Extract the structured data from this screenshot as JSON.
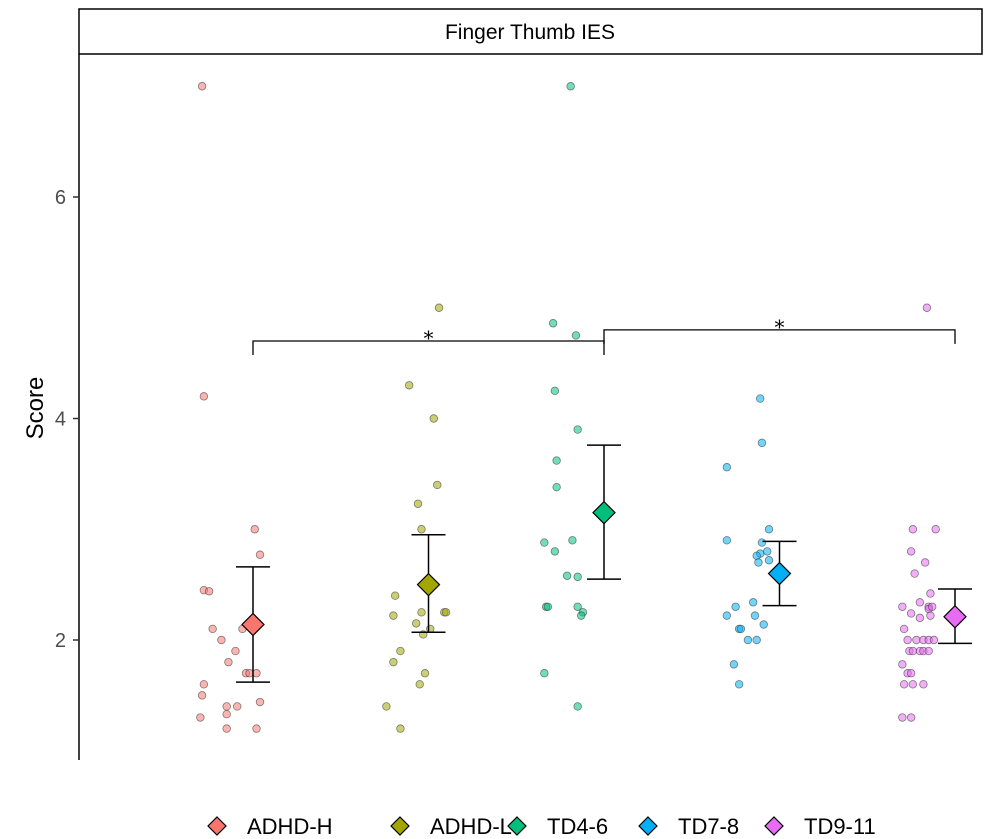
{
  "chart_data": {
    "type": "scatter",
    "title": "Finger Thumb IES",
    "xlabel": "",
    "ylabel": "Score",
    "ylim": [
      0.9,
      7.3
    ],
    "yticks": [
      2,
      4,
      6
    ],
    "grid": false,
    "legend_position": "bottom",
    "groups": [
      {
        "name": "ADHD-H",
        "color": "#F8766D",
        "mean": 2.14,
        "ci_low": 1.62,
        "ci_high": 2.66,
        "points": [
          {
            "x": -0.29,
            "y": 7.0
          },
          {
            "x": -0.28,
            "y": 4.2
          },
          {
            "x": 0.01,
            "y": 3.0
          },
          {
            "x": 0.04,
            "y": 2.77
          },
          {
            "x": -0.28,
            "y": 2.45
          },
          {
            "x": -0.25,
            "y": 2.44
          },
          {
            "x": -0.23,
            "y": 2.1
          },
          {
            "x": -0.06,
            "y": 2.1
          },
          {
            "x": -0.18,
            "y": 2.0
          },
          {
            "x": -0.1,
            "y": 1.9
          },
          {
            "x": -0.14,
            "y": 1.8
          },
          {
            "x": -0.04,
            "y": 1.7
          },
          {
            "x": -0.02,
            "y": 1.7
          },
          {
            "x": 0.02,
            "y": 1.7
          },
          {
            "x": -0.28,
            "y": 1.6
          },
          {
            "x": -0.29,
            "y": 1.5
          },
          {
            "x": -0.15,
            "y": 1.4
          },
          {
            "x": -0.09,
            "y": 1.4
          },
          {
            "x": 0.04,
            "y": 1.44
          },
          {
            "x": -0.15,
            "y": 1.33
          },
          {
            "x": -0.3,
            "y": 1.3
          },
          {
            "x": -0.15,
            "y": 1.2
          },
          {
            "x": 0.02,
            "y": 1.2
          }
        ]
      },
      {
        "name": "ADHD-L",
        "color": "#A3A500",
        "mean": 2.5,
        "ci_low": 2.07,
        "ci_high": 2.95,
        "points": [
          {
            "x": 0.06,
            "y": 5.0
          },
          {
            "x": -0.11,
            "y": 4.3
          },
          {
            "x": 0.03,
            "y": 4.0
          },
          {
            "x": 0.05,
            "y": 3.4
          },
          {
            "x": -0.06,
            "y": 3.23
          },
          {
            "x": -0.04,
            "y": 3.0
          },
          {
            "x": -0.19,
            "y": 2.4
          },
          {
            "x": -0.2,
            "y": 2.22
          },
          {
            "x": -0.04,
            "y": 2.25
          },
          {
            "x": 0.09,
            "y": 2.25
          },
          {
            "x": 0.1,
            "y": 2.25
          },
          {
            "x": -0.07,
            "y": 2.15
          },
          {
            "x": 0.01,
            "y": 2.1
          },
          {
            "x": -0.16,
            "y": 1.9
          },
          {
            "x": -0.03,
            "y": 2.05
          },
          {
            "x": -0.2,
            "y": 1.8
          },
          {
            "x": -0.02,
            "y": 1.7
          },
          {
            "x": -0.05,
            "y": 1.6
          },
          {
            "x": -0.24,
            "y": 1.4
          },
          {
            "x": -0.16,
            "y": 1.2
          }
        ]
      },
      {
        "name": "TD4-6",
        "color": "#00BF7D",
        "mean": 3.15,
        "ci_low": 2.55,
        "ci_high": 3.76,
        "points": [
          {
            "x": -0.19,
            "y": 7.0
          },
          {
            "x": -0.29,
            "y": 4.86
          },
          {
            "x": -0.16,
            "y": 4.75
          },
          {
            "x": -0.28,
            "y": 4.25
          },
          {
            "x": -0.15,
            "y": 3.9
          },
          {
            "x": -0.27,
            "y": 3.62
          },
          {
            "x": -0.27,
            "y": 3.38
          },
          {
            "x": -0.18,
            "y": 2.9
          },
          {
            "x": -0.34,
            "y": 2.88
          },
          {
            "x": -0.28,
            "y": 2.8
          },
          {
            "x": -0.21,
            "y": 2.58
          },
          {
            "x": -0.15,
            "y": 2.57
          },
          {
            "x": -0.33,
            "y": 2.3
          },
          {
            "x": -0.32,
            "y": 2.3
          },
          {
            "x": -0.15,
            "y": 2.3
          },
          {
            "x": -0.12,
            "y": 2.25
          },
          {
            "x": -0.13,
            "y": 2.22
          },
          {
            "x": -0.34,
            "y": 1.7
          },
          {
            "x": -0.15,
            "y": 1.4
          }
        ]
      },
      {
        "name": "TD7-8",
        "color": "#00B0F6",
        "mean": 2.6,
        "ci_low": 2.31,
        "ci_high": 2.89,
        "points": [
          {
            "x": -0.11,
            "y": 4.18
          },
          {
            "x": -0.1,
            "y": 3.78
          },
          {
            "x": -0.3,
            "y": 3.56
          },
          {
            "x": -0.06,
            "y": 3.0
          },
          {
            "x": -0.3,
            "y": 2.9
          },
          {
            "x": -0.1,
            "y": 2.88
          },
          {
            "x": -0.11,
            "y": 2.78
          },
          {
            "x": -0.07,
            "y": 2.8
          },
          {
            "x": -0.13,
            "y": 2.76
          },
          {
            "x": -0.12,
            "y": 2.7
          },
          {
            "x": -0.06,
            "y": 2.72
          },
          {
            "x": -0.15,
            "y": 2.34
          },
          {
            "x": -0.25,
            "y": 2.3
          },
          {
            "x": -0.3,
            "y": 2.22
          },
          {
            "x": -0.14,
            "y": 2.22
          },
          {
            "x": -0.23,
            "y": 2.1
          },
          {
            "x": -0.22,
            "y": 2.1
          },
          {
            "x": -0.09,
            "y": 2.14
          },
          {
            "x": -0.13,
            "y": 2.0
          },
          {
            "x": -0.18,
            "y": 2.0
          },
          {
            "x": -0.26,
            "y": 1.78
          },
          {
            "x": -0.23,
            "y": 1.6
          }
        ]
      },
      {
        "name": "TD9-11",
        "color": "#E76BF3",
        "mean": 2.21,
        "ci_low": 1.97,
        "ci_high": 2.46,
        "points": [
          {
            "x": -0.16,
            "y": 5.0
          },
          {
            "x": -0.24,
            "y": 3.0
          },
          {
            "x": -0.11,
            "y": 3.0
          },
          {
            "x": -0.25,
            "y": 2.8
          },
          {
            "x": -0.17,
            "y": 2.7
          },
          {
            "x": -0.23,
            "y": 2.6
          },
          {
            "x": -0.3,
            "y": 2.3
          },
          {
            "x": -0.2,
            "y": 2.34
          },
          {
            "x": -0.15,
            "y": 2.3
          },
          {
            "x": -0.15,
            "y": 2.28
          },
          {
            "x": -0.14,
            "y": 2.42
          },
          {
            "x": -0.13,
            "y": 2.3
          },
          {
            "x": -0.25,
            "y": 2.24
          },
          {
            "x": -0.2,
            "y": 2.2
          },
          {
            "x": -0.14,
            "y": 2.22
          },
          {
            "x": -0.29,
            "y": 2.1
          },
          {
            "x": -0.27,
            "y": 2.0
          },
          {
            "x": -0.22,
            "y": 2.0
          },
          {
            "x": -0.18,
            "y": 2.0
          },
          {
            "x": -0.15,
            "y": 2.0
          },
          {
            "x": -0.12,
            "y": 2.0
          },
          {
            "x": -0.26,
            "y": 1.9
          },
          {
            "x": -0.24,
            "y": 1.9
          },
          {
            "x": -0.2,
            "y": 1.9
          },
          {
            "x": -0.18,
            "y": 1.9
          },
          {
            "x": -0.15,
            "y": 1.9
          },
          {
            "x": -0.3,
            "y": 1.78
          },
          {
            "x": -0.27,
            "y": 1.7
          },
          {
            "x": -0.25,
            "y": 1.7
          },
          {
            "x": -0.29,
            "y": 1.6
          },
          {
            "x": -0.24,
            "y": 1.6
          },
          {
            "x": -0.18,
            "y": 1.6
          },
          {
            "x": -0.3,
            "y": 1.3
          },
          {
            "x": -0.25,
            "y": 1.3
          }
        ]
      }
    ],
    "significance": [
      {
        "from": "ADHD-H",
        "to": "TD4-6",
        "y": 4.7,
        "label": "*"
      },
      {
        "from": "TD4-6",
        "to": "TD9-11",
        "y": 4.8,
        "label": "*"
      }
    ]
  }
}
